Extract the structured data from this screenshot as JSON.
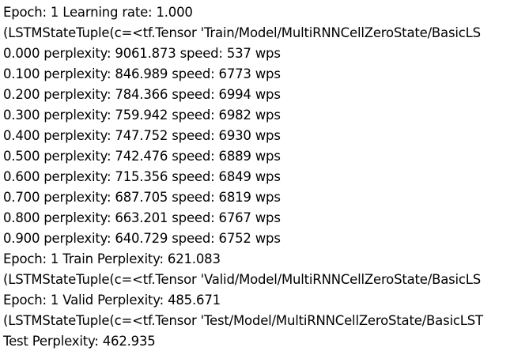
{
  "console": {
    "lines": [
      "Epoch: 1 Learning rate: 1.000",
      "(LSTMStateTuple(c=<tf.Tensor 'Train/Model/MultiRNNCellZeroState/BasicLS",
      "0.000 perplexity: 9061.873 speed: 537 wps",
      "0.100 perplexity: 846.989 speed: 6773 wps",
      "0.200 perplexity: 784.366 speed: 6994 wps",
      "0.300 perplexity: 759.942 speed: 6982 wps",
      "0.400 perplexity: 747.752 speed: 6930 wps",
      "0.500 perplexity: 742.476 speed: 6889 wps",
      "0.600 perplexity: 715.356 speed: 6849 wps",
      "0.700 perplexity: 687.705 speed: 6819 wps",
      "0.800 perplexity: 663.201 speed: 6767 wps",
      "0.900 perplexity: 640.729 speed: 6752 wps",
      "Epoch: 1 Train Perplexity: 621.083",
      "(LSTMStateTuple(c=<tf.Tensor 'Valid/Model/MultiRNNCellZeroState/BasicLS",
      "Epoch: 1 Valid Perplexity: 485.671",
      "(LSTMStateTuple(c=<tf.Tensor 'Test/Model/MultiRNNCellZeroState/BasicLST",
      "Test Perplexity: 462.935"
    ]
  }
}
